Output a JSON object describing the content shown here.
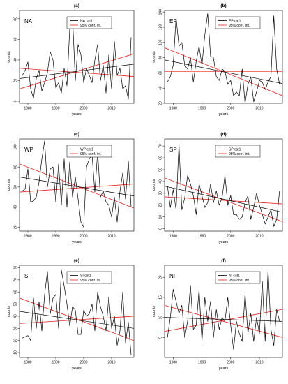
{
  "figure": {
    "background": "#ffffff",
    "line_color": "#000000",
    "conf_color": "#e8201e"
  },
  "chart_data": [
    {
      "type": "line",
      "panel": "(a)",
      "region": "NA",
      "legend": [
        "NA cat1",
        "95% conf. int."
      ],
      "legend_position": "top-right",
      "xlabel": "years",
      "ylabel": "counts",
      "xlim": [
        1977,
        2018
      ],
      "ylim": [
        -2,
        88
      ],
      "xticks": [
        1980,
        1990,
        2000,
        2010
      ],
      "yticks": [
        0,
        20,
        40,
        60,
        80
      ],
      "x": [
        1978,
        1979,
        1980,
        1981,
        1982,
        1983,
        1984,
        1985,
        1986,
        1987,
        1988,
        1989,
        1990,
        1991,
        1992,
        1993,
        1994,
        1995,
        1996,
        1997,
        1998,
        1999,
        2000,
        2001,
        2002,
        2003,
        2004,
        2005,
        2006,
        2007,
        2008,
        2009,
        2010,
        2011,
        2012,
        2013,
        2014,
        2015,
        2016,
        2017
      ],
      "series": [
        {
          "name": "NA cat1",
          "values": [
            25,
            30,
            38,
            12,
            3,
            22,
            30,
            10,
            18,
            28,
            48,
            40,
            13,
            18,
            8,
            32,
            15,
            70,
            82,
            20,
            55,
            45,
            18,
            32,
            25,
            18,
            40,
            55,
            20,
            35,
            8,
            45,
            12,
            58,
            25,
            32,
            12,
            15,
            2,
            62
          ]
        }
      ],
      "fit_line": [
        22,
        36
      ],
      "conf_lines": [
        [
          12,
          46
        ],
        [
          32,
          24
        ]
      ]
    },
    {
      "type": "line",
      "panel": "(b)",
      "region": "EP",
      "legend": [
        "EP cat1",
        "95% conf. int."
      ],
      "legend_position": "top-right",
      "xlabel": "years",
      "ylabel": "counts",
      "xlim": [
        1977,
        2018
      ],
      "ylim": [
        20,
        142
      ],
      "xticks": [
        1980,
        1990,
        2000,
        2010
      ],
      "yticks": [
        20,
        40,
        60,
        80,
        100,
        120,
        140
      ],
      "x": [
        1978,
        1979,
        1980,
        1981,
        1982,
        1983,
        1984,
        1985,
        1986,
        1987,
        1988,
        1989,
        1990,
        1991,
        1992,
        1993,
        1994,
        1995,
        1996,
        1997,
        1998,
        1999,
        2000,
        2001,
        2002,
        2003,
        2004,
        2005,
        2006,
        2007,
        2008,
        2009,
        2010,
        2011,
        2012,
        2013,
        2014,
        2015,
        2016,
        2017
      ],
      "series": [
        {
          "name": "EP cat1",
          "values": [
            48,
            55,
            70,
            133,
            95,
            100,
            70,
            65,
            80,
            48,
            75,
            95,
            70,
            110,
            138,
            82,
            80,
            55,
            50,
            65,
            62,
            45,
            50,
            30,
            35,
            30,
            65,
            20,
            45,
            55,
            22,
            35,
            50,
            48,
            38,
            48,
            55,
            135,
            65,
            45
          ]
        }
      ],
      "fit_line": [
        77,
        46
      ],
      "conf_lines": [
        [
          93,
          30
        ],
        [
          62,
          62
        ]
      ]
    },
    {
      "type": "line",
      "panel": "(c)",
      "region": "WP",
      "legend": [
        "WP cat1",
        "95% conf. int."
      ],
      "legend_position": "top-right",
      "xlabel": "years",
      "ylabel": "counts",
      "xlim": [
        1977,
        2018
      ],
      "ylim": [
        16,
        108
      ],
      "xticks": [
        1980,
        1990,
        2000,
        2010
      ],
      "yticks": [
        20,
        40,
        60,
        80,
        100
      ],
      "x": [
        1978,
        1979,
        1980,
        1981,
        1982,
        1983,
        1984,
        1985,
        1986,
        1987,
        1988,
        1989,
        1990,
        1991,
        1992,
        1993,
        1994,
        1995,
        1996,
        1997,
        1998,
        1999,
        2000,
        2001,
        2002,
        2003,
        2004,
        2005,
        2006,
        2007,
        2008,
        2009,
        2010,
        2011,
        2012,
        2013,
        2014,
        2015,
        2016,
        2017
      ],
      "series": [
        {
          "name": "WP cat1",
          "values": [
            56,
            58,
            78,
            45,
            46,
            50,
            65,
            88,
            106,
            60,
            78,
            80,
            45,
            83,
            42,
            88,
            40,
            85,
            50,
            70,
            48,
            25,
            20,
            80,
            88,
            92,
            55,
            95,
            50,
            56,
            45,
            42,
            30,
            50,
            25,
            56,
            74,
            48,
            86,
            40
          ]
        }
      ],
      "fit_line": [
        70,
        51
      ],
      "conf_lines": [
        [
          83,
          39
        ],
        [
          55,
          63
        ]
      ]
    },
    {
      "type": "line",
      "panel": "(d)",
      "region": "SP",
      "legend": [
        "SP cat1",
        "95% conf. int."
      ],
      "legend_position": "top-right",
      "xlabel": "years",
      "ylabel": "counts",
      "xlim": [
        1977,
        2018
      ],
      "ylim": [
        -2,
        76
      ],
      "xticks": [
        1980,
        1990,
        2000,
        2010
      ],
      "yticks": [
        0,
        10,
        20,
        30,
        40,
        50,
        60,
        70
      ],
      "x": [
        1978,
        1979,
        1980,
        1981,
        1982,
        1983,
        1984,
        1985,
        1986,
        1987,
        1988,
        1989,
        1990,
        1991,
        1992,
        1993,
        1994,
        1995,
        1996,
        1997,
        1998,
        1999,
        2000,
        2001,
        2002,
        2003,
        2004,
        2005,
        2006,
        2007,
        2008,
        2009,
        2010,
        2011,
        2012,
        2013,
        2014,
        2015,
        2016,
        2017
      ],
      "series": [
        {
          "name": "SP cat1",
          "values": [
            36,
            18,
            33,
            16,
            72,
            16,
            26,
            45,
            38,
            28,
            12,
            38,
            28,
            18,
            22,
            38,
            22,
            32,
            20,
            26,
            45,
            20,
            28,
            12,
            12,
            8,
            10,
            22,
            28,
            8,
            18,
            30,
            20,
            12,
            4,
            10,
            16,
            2,
            8,
            32
          ]
        }
      ],
      "fit_line": [
        36,
        14
      ],
      "conf_lines": [
        [
          43,
          6
        ],
        [
          27,
          21
        ]
      ]
    },
    {
      "type": "line",
      "panel": "(e)",
      "region": "SI",
      "legend": [
        "SI cat1",
        "95% conf. int."
      ],
      "legend_position": "top-right",
      "xlabel": "years",
      "ylabel": "counts",
      "xlim": [
        1977,
        2018
      ],
      "ylim": [
        6,
        82
      ],
      "xticks": [
        1980,
        1990,
        2000,
        2010
      ],
      "yticks": [
        10,
        20,
        30,
        40,
        50,
        60,
        70,
        80
      ],
      "x": [
        1978,
        1979,
        1980,
        1981,
        1982,
        1983,
        1984,
        1985,
        1986,
        1987,
        1988,
        1989,
        1990,
        1991,
        1992,
        1993,
        1994,
        1995,
        1996,
        1997,
        1998,
        1999,
        2000,
        2001,
        2002,
        2003,
        2004,
        2005,
        2006,
        2007,
        2008,
        2009,
        2010,
        2011,
        2012,
        2013,
        2014,
        2015,
        2016,
        2017
      ],
      "series": [
        {
          "name": "SI cat1",
          "values": [
            22,
            23,
            24,
            20,
            55,
            30,
            52,
            28,
            58,
            77,
            42,
            55,
            58,
            30,
            78,
            65,
            50,
            32,
            48,
            45,
            25,
            25,
            45,
            40,
            42,
            50,
            28,
            60,
            48,
            40,
            28,
            56,
            30,
            40,
            16,
            28,
            60,
            18,
            35,
            8
          ]
        }
      ],
      "fit_line": [
        44,
        30
      ],
      "conf_lines": [
        [
          55,
          20
        ],
        [
          34,
          40
        ]
      ]
    },
    {
      "type": "line",
      "panel": "(f)",
      "region": "NI",
      "legend": [
        "NI cat1",
        "95% conf. int."
      ],
      "legend_position": "top-right",
      "xlabel": "years",
      "ylabel": "counts",
      "xlim": [
        1977,
        2018
      ],
      "ylim": [
        0,
        23
      ],
      "xticks": [
        1980,
        1990,
        2000,
        2010
      ],
      "yticks": [
        5,
        10,
        15,
        20
      ],
      "x": [
        1978,
        1979,
        1980,
        1981,
        1982,
        1983,
        1984,
        1985,
        1986,
        1987,
        1988,
        1989,
        1990,
        1991,
        1992,
        1993,
        1994,
        1995,
        1996,
        1997,
        1998,
        1999,
        2000,
        2001,
        2002,
        2003,
        2004,
        2005,
        2006,
        2007,
        2008,
        2009,
        2010,
        2011,
        2012,
        2013,
        2014,
        2015,
        2016,
        2017
      ],
      "series": [
        {
          "name": "NI cat1",
          "values": [
            5,
            10,
            17,
            14,
            11,
            13,
            5,
            9,
            18,
            7,
            8,
            17,
            4,
            15,
            9,
            14,
            5,
            12,
            7,
            10,
            9,
            15,
            8,
            2,
            9,
            6,
            4,
            16,
            6,
            11,
            4,
            10,
            6,
            19,
            4,
            22,
            7,
            3,
            12,
            9
          ]
        }
      ],
      "fit_line": [
        10,
        9
      ],
      "conf_lines": [
        [
          6.5,
          12
        ],
        [
          13,
          5
        ]
      ]
    }
  ]
}
